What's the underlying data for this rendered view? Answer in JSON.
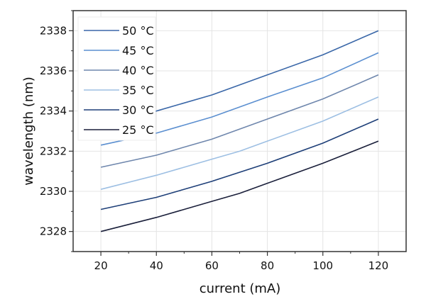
{
  "chart_data": {
    "type": "line",
    "title": "",
    "xlabel": "current (mA)",
    "ylabel": "wavelength (nm)",
    "xlim": [
      10,
      130
    ],
    "ylim": [
      2327,
      2339
    ],
    "xticks": [
      20,
      40,
      60,
      80,
      100,
      120
    ],
    "yticks": [
      2328,
      2330,
      2332,
      2334,
      2336,
      2338
    ],
    "grid": true,
    "legend_position": "top-left",
    "series": [
      {
        "name": "50 °C",
        "color": "#3a67a8",
        "x": [
          20,
          40,
          60,
          80,
          100,
          120
        ],
        "y": [
          2333.3,
          2334.0,
          2334.8,
          2335.8,
          2336.8,
          2338.0
        ]
      },
      {
        "name": "45 °C",
        "color": "#5b8fd0",
        "x": [
          20,
          40,
          60,
          80,
          100,
          120
        ],
        "y": [
          2332.3,
          2332.9,
          2333.7,
          2334.7,
          2335.65,
          2336.9
        ]
      },
      {
        "name": "40 °C",
        "color": "#6f87ad",
        "x": [
          20,
          40,
          60,
          80,
          100,
          120
        ],
        "y": [
          2331.2,
          2331.8,
          2332.6,
          2333.6,
          2334.6,
          2335.8
        ]
      },
      {
        "name": "35 °C",
        "color": "#9dbfe3",
        "x": [
          20,
          40,
          60,
          70,
          80,
          100,
          120
        ],
        "y": [
          2330.1,
          2330.8,
          2331.6,
          2332.0,
          2332.5,
          2333.5,
          2334.7
        ]
      },
      {
        "name": "30 °C",
        "color": "#1e3f78",
        "x": [
          20,
          40,
          60,
          80,
          100,
          120
        ],
        "y": [
          2329.1,
          2329.7,
          2330.5,
          2331.4,
          2332.4,
          2333.6
        ]
      },
      {
        "name": "25 °C",
        "color": "#1a1f3a",
        "x": [
          20,
          40,
          60,
          70,
          80,
          100,
          120
        ],
        "y": [
          2328.0,
          2328.7,
          2329.5,
          2329.9,
          2330.4,
          2331.4,
          2332.5
        ]
      }
    ]
  }
}
